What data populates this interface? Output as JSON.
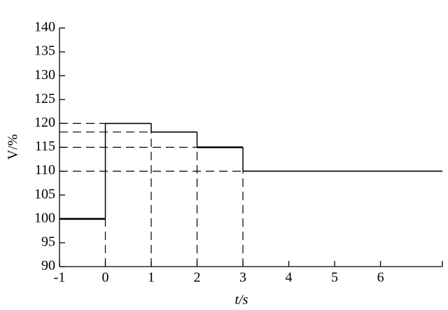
{
  "chart_data": {
    "type": "step",
    "xlabel": "t/s",
    "ylabel": "V/%",
    "series": [
      {
        "color": "#000000",
        "x": [
          -1,
          0,
          1,
          2,
          3
        ],
        "values": [
          100,
          120,
          118.2,
          115,
          110
        ]
      }
    ],
    "xlim": [
      -1,
      7.35
    ],
    "xticks": [
      -1,
      0,
      1,
      2,
      3,
      4,
      5,
      6,
      7.35
    ],
    "ylim": [
      90,
      140
    ],
    "yticks": [
      90,
      95,
      100,
      105,
      110,
      115,
      120,
      125,
      130,
      135,
      140
    ]
  }
}
